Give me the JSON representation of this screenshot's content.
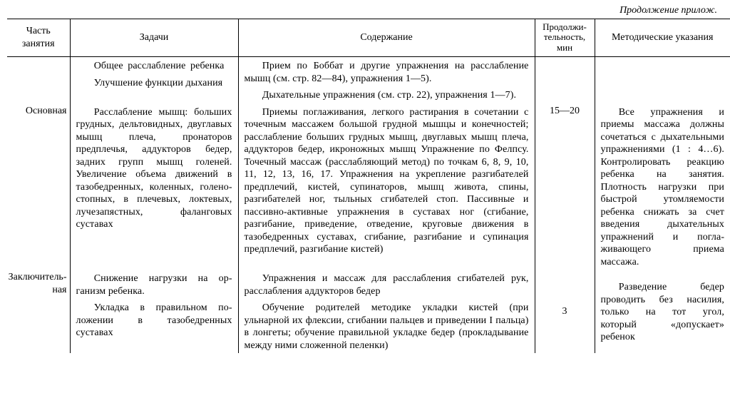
{
  "caption": "Продолжение прилож.",
  "headers": {
    "c1": "Часть занятия",
    "c2": "Задачи",
    "c3": "Содержание",
    "c4": "Продолжи­тельность, мин",
    "c5": "Методические указания"
  },
  "rows": {
    "r1": {
      "part": "",
      "tasks_a": "Общее расслабление ре­бенка",
      "tasks_b": "Улучшение функции дыха­ния",
      "content_a": "Прием по Боббат и другие упражнения на расслабление мышц (см. стр. 82—84), упражне­ния 1—5).",
      "content_b": "Дыхательные упражнения (см. стр. 22), уп­ражнения 1—7).",
      "duration": "",
      "notes": ""
    },
    "r2": {
      "part": "Основ­ная",
      "tasks": "Расслабление мышц: боль­ших грудных, дельтовидных, двуглавых мышц плеча, про­наторов предплечья, аддукто­ров бедер, задних групп мышц голеней. Увеличение объема движений в тазобед­ренных, коленных, голено­стопных, в плечевых, локте­вых, лучезапястных, фалан­говых суставах",
      "content": "Приемы поглаживания, легкого растирания в сочетании с точечным массажем большой груд­ной мышцы и конечностей; расслабление боль­ших грудных мышц, двуглавых мышц плеча, аддукторов бедер, икроножных мышц Упражнение по Фелпсу. Точечный массаж (рас­слабляющий метод) по точкам 6, 8, 9, 10, 11, 12, 13, 16, 17. Упражнения на укрепление разгиба­телей предплечий, кистей, супинаторов, мышц живота, спины, разгибателей ног, тыльных сги­бателей стоп. Пассивные и пассивно-активные упражнения в суставах ног (сгибание, разгиба­ние, приведение, отведение, круговые движения в тазобедренных суставах, сгибание, разгиба­ние и супинация предплечий, разгибание кистей)",
      "duration": "15—20",
      "notes": "Все упражнения и приемы массажа дол­жны сочетаться с ды­хательными упраж­нениями (1 : 4…6). Контролировать ре­акцию ребенка на за­нятия. Плотность на­грузки при быстрой утомляемости ребенка снижать за счет вве­дения дыхательных упражнений и погла­живающего приема массажа."
    },
    "r3": {
      "part": "Заклю­читель­ная",
      "tasks_a": "Снижение нагрузки на ор­ганизм ребенка.",
      "tasks_b": "Укладка в правильном по­ложении в тазобедренных суставах",
      "content_a": "Упражнения и массаж для расслабления сгибателей рук, расслабления аддукторов бедер",
      "content_b": "Обучение родителей методике укладки ки­стей (при ульнарной их флексии, сгибании паль­цев и приведении I пальца) в лонгеты; обучение правильной укладке бедер (прокладывание между ними сложенной пеленки)",
      "duration": "3",
      "notes": "Разведение бедер проводить без наси­лия, только на тот угол, который «до­пускает» ребенок"
    }
  }
}
